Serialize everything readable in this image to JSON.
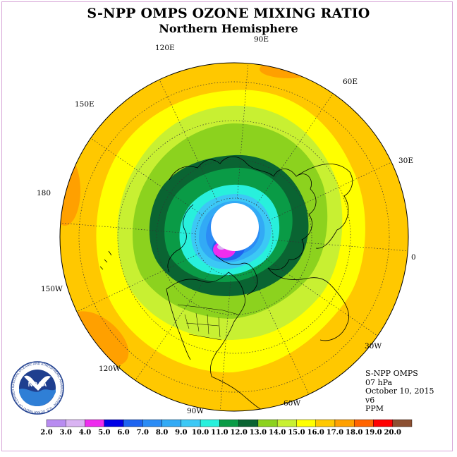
{
  "title": "S-NPP OMPS OZONE MIXING RATIO",
  "subtitle": "Northern Hemisphere",
  "longitude_labels": [
    "90E",
    "60E",
    "30E",
    "0",
    "30W",
    "60W",
    "90W",
    "120W",
    "150W",
    "180",
    "150E",
    "120E"
  ],
  "info": {
    "instrument": "S-NPP OMPS",
    "level": "07 hPa",
    "date": "October 10, 2015",
    "version": "v6",
    "units": "PPM"
  },
  "logo": {
    "name": "NOAA",
    "ring_text": "NATIONAL OCEANIC AND ATMOSPHERIC ADMINISTRATION · U.S. DEPARTMENT OF COMMERCE"
  },
  "colorbar": {
    "ticks": [
      "2.0",
      "3.0",
      "4.0",
      "5.0",
      "6.0",
      "7.0",
      "8.0",
      "9.0",
      "10.0",
      "11.0",
      "12.0",
      "13.0",
      "14.0",
      "15.0",
      "16.0",
      "17.0",
      "18.0",
      "19.0",
      "20.0"
    ],
    "colors": [
      "#b88cf0",
      "#d9b3f2",
      "#ee2cee",
      "#0000e6",
      "#1e64f0",
      "#2b8cf5",
      "#32aaf5",
      "#3cc8f5",
      "#28f0dc",
      "#0a9b46",
      "#0a6432",
      "#8cd21e",
      "#c8f032",
      "#ffff00",
      "#ffc800",
      "#ffa000",
      "#ff6400",
      "#ff0000",
      "#8c5032"
    ]
  }
}
